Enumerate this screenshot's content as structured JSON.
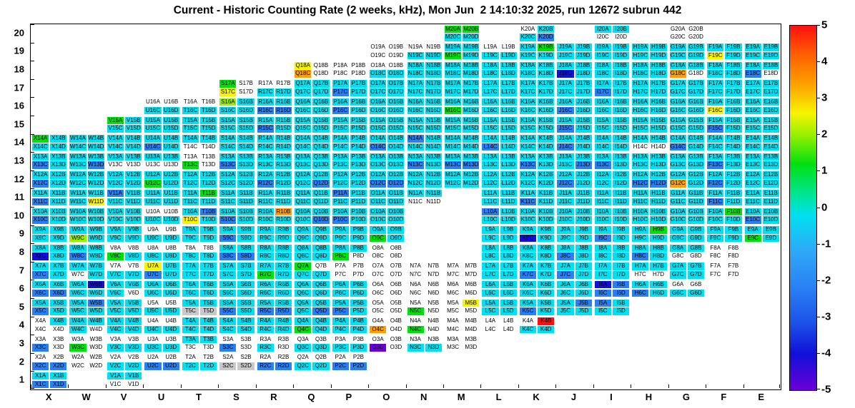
{
  "title": "Current - Historic Counting Rate (2 weeks, kHz), Mon Jun  2 14:10:32 2025, run 12672 subrun 442",
  "chart_data": {
    "type": "heatmap",
    "title": "Current - Historic Counting Rate (2 weeks, kHz), Mon Jun  2 14:10:32 2025, run 12672 subrun 442",
    "x_categories": [
      "X",
      "W",
      "V",
      "U",
      "T",
      "S",
      "R",
      "Q",
      "P",
      "O",
      "N",
      "M",
      "L",
      "K",
      "J",
      "I",
      "H",
      "G",
      "F",
      "E"
    ],
    "y_categories": [
      "20",
      "19",
      "18",
      "17",
      "16",
      "15",
      "14",
      "13",
      "12",
      "11",
      "10",
      "9",
      "8",
      "7",
      "6",
      "5",
      "4",
      "3",
      "2",
      "1"
    ],
    "sublabels": [
      "A",
      "B",
      "C",
      "D"
    ],
    "palette": {
      "w": "#FFFFFF",
      "c": "#00E0F0",
      "b": "#2980F5",
      "n": "#1010D8",
      "p": "#6A00D8",
      "g": "#00E010",
      "l": "#97F000",
      "y": "#F6F400",
      "o": "#FFA000",
      "r": "#FF1010",
      "s": "#C9C9C9"
    },
    "color_value_estimates": {
      "r": 5,
      "o": 4,
      "y": 3,
      "l": 2.5,
      "g": 1.5,
      "c": -0.5,
      "b": -2,
      "n": -3.5,
      "p": -4.5,
      "s": 0,
      "w": null
    },
    "colorbar": {
      "min": -5,
      "max": 5,
      "ticks": [
        "5",
        "4",
        "3",
        "2",
        "1",
        "0",
        "-1",
        "-2",
        "-3",
        "-4",
        "-5"
      ],
      "gradient_stops": [
        [
          "0%",
          "#FF1010"
        ],
        [
          "8%",
          "#FF6000"
        ],
        [
          "16%",
          "#FFA000"
        ],
        [
          "24%",
          "#F6F400"
        ],
        [
          "30%",
          "#97F000"
        ],
        [
          "38%",
          "#00E010"
        ],
        [
          "46%",
          "#00E590"
        ],
        [
          "52%",
          "#00E0F0"
        ],
        [
          "62%",
          "#2FA8F8"
        ],
        [
          "72%",
          "#2980F5"
        ],
        [
          "82%",
          "#1C4FE8"
        ],
        [
          "90%",
          "#1010D8"
        ],
        [
          "100%",
          "#6A00D8"
        ]
      ]
    },
    "rows": [
      {
        "row": 20,
        "cells": {
          "M": "ggcc",
          "K": "wccb",
          "I": "ccww",
          "G": "wwww"
        }
      },
      {
        "row": 19,
        "cells": {
          "O": "wwww",
          "N": "wwcc",
          "M": "ccgc",
          "L": "wwcc",
          "K": "cgcc",
          "J": "cccc",
          "I": "cccc",
          "H": "cccc",
          "G": "cccc",
          "F": "ccyc",
          "E": "cccc"
        }
      },
      {
        "row": 18,
        "cells": {
          "Q": "ywow",
          "P": "wwww",
          "O": "wwcc",
          "N": "cccc",
          "M": "cccc",
          "L": "cccc",
          "K": "cccc",
          "J": "ccnc",
          "I": "cccc",
          "H": "cccc",
          "G": "ccow",
          "F": "cccc",
          "E": "ccbw"
        }
      },
      {
        "row": 17,
        "cells": {
          "S": "gwyw",
          "R": "wwcc",
          "Q": "cccc",
          "P": "ccbc",
          "O": "cccc",
          "N": "cccc",
          "M": "cccc",
          "L": "cccc",
          "K": "cccc",
          "J": "cccc",
          "I": "ccbc",
          "H": "cccc",
          "G": "cccc",
          "F": "cccc",
          "E": "cccc"
        }
      },
      {
        "row": 16,
        "cells": {
          "U": "wwcc",
          "T": "wwcc",
          "S": "lccc",
          "R": "ccbb",
          "Q": "cccc",
          "P": "ccbc",
          "O": "cccc",
          "N": "cccc",
          "M": "ccgc",
          "L": "cccc",
          "K": "cccc",
          "J": "ccbc",
          "I": "cccc",
          "H": "cccc",
          "G": "cccc",
          "F": "ccyc",
          "E": "cccc"
        }
      },
      {
        "row": 15,
        "cells": {
          "V": "gccc",
          "U": "cccc",
          "T": "cccc",
          "S": "cccc",
          "R": "ccbc",
          "Q": "cccc",
          "P": "cccc",
          "O": "cccc",
          "N": "cccc",
          "M": "cccc",
          "L": "cccc",
          "K": "cccc",
          "J": "ccbc",
          "I": "cccc",
          "H": "cccc",
          "G": "cccc",
          "F": "ccbc",
          "E": "cccc"
        }
      },
      {
        "row": 14,
        "cells": {
          "X": "gccc",
          "W": "cccc",
          "V": "cccc",
          "U": "ccbc",
          "T": "ccww",
          "S": "cccc",
          "R": "cccc",
          "Q": "cccc",
          "P": "cccc",
          "O": "ccbc",
          "N": "bccc",
          "M": "cccc",
          "L": "ccbc",
          "K": "cccc",
          "J": "ccbc",
          "I": "cccc",
          "H": "ccww",
          "G": "ccbc",
          "F": "cccc",
          "E": "cccc"
        }
      },
      {
        "row": 13,
        "cells": {
          "X": "ccbc",
          "W": "cccb",
          "V": "ccww",
          "U": "ccww",
          "T": "wwgw",
          "S": "ccbc",
          "R": "cccc",
          "Q": "cccc",
          "P": "cccc",
          "O": "cccc",
          "N": "ccbc",
          "M": "ccbb",
          "L": "cccc",
          "K": "ccbc",
          "J": "cccb",
          "I": "ccbc",
          "H": "cccc",
          "G": "cccc",
          "F": "ccbc",
          "E": "cccc"
        }
      },
      {
        "row": 12,
        "cells": {
          "X": "ccbc",
          "W": "cccc",
          "V": "cccc",
          "U": "ccgc",
          "T": "cccc",
          "S": "cccc",
          "R": "ccbc",
          "Q": "cccb",
          "P": "cccc",
          "O": "ccbb",
          "N": "cccc",
          "M": "cccc",
          "L": "cccc",
          "K": "cccc",
          "J": "ccbc",
          "I": "cccc",
          "H": "ccbb",
          "G": "ccoc",
          "F": "ccbc",
          "E": "cccc"
        }
      },
      {
        "row": 11,
        "cells": {
          "X": "ccbc",
          "W": "cccy",
          "V": "bccc",
          "U": "cccc",
          "T": "cgcc",
          "S": "cccc",
          "R": "cccc",
          "Q": "cccc",
          "P": "bccc",
          "O": "cccc",
          "N": "ccww",
          "L": "cccc",
          "K": "ccbc",
          "J": "cccc",
          "I": "cccc",
          "H": "cccc",
          "G": "cccc",
          "F": "ccbc",
          "E": "cccc"
        }
      },
      {
        "row": 10,
        "cells": {
          "X": "ccbc",
          "W": "cccc",
          "V": "cccc",
          "U": "wwcc",
          "T": "cbyc",
          "S": "ccbc",
          "R": "cocc",
          "Q": "cccb",
          "P": "ccbc",
          "O": "cccc",
          "L": "bccc",
          "K": "cccc",
          "J": "cccc",
          "I": "cccc",
          "H": "cccc",
          "G": "cccc",
          "F": "cgcc",
          "E": "ccbc"
        }
      },
      {
        "row": 9,
        "cells": {
          "X": "cccc",
          "W": "cclc",
          "V": "cccc",
          "U": "wwcc",
          "T": "cccc",
          "S": "ccbc",
          "R": "cccc",
          "Q": "cccc",
          "P": "cccc",
          "O": "ccgc",
          "L": "cccc",
          "K": "ccnc",
          "J": "cccc",
          "I": "ccbc",
          "H": "cgcc",
          "G": "cccc",
          "F": "cccc",
          "E": "ccgc"
        }
      },
      {
        "row": 8,
        "cells": {
          "X": "ccnc",
          "W": "ccbc",
          "V": "wwgc",
          "U": "wwcc",
          "T": "wwcc",
          "S": "ccbb",
          "R": "cccc",
          "Q": "cccc",
          "P": "ccgw",
          "O": "wwww",
          "L": "cccc",
          "K": "cccc",
          "J": "ccbc",
          "I": "cccc",
          "H": "ccbc",
          "G": "ccww",
          "F": "wwww"
        }
      },
      {
        "row": 7,
        "cells": {
          "X": "ccbc",
          "W": "ccwc",
          "V": "wwcc",
          "U": "ycbc",
          "T": "cccc",
          "S": "cccc",
          "R": "ccgc",
          "Q": "gwcc",
          "P": "wwww",
          "O": "wwww",
          "N": "wwww",
          "M": "wwww",
          "L": "cccc",
          "K": "ccbc",
          "J": "ccbc",
          "I": "cccc",
          "H": "ccww",
          "G": "cccc",
          "F": "wwww"
        }
      },
      {
        "row": 6,
        "cells": {
          "X": "ccbb",
          "W": "cncc",
          "V": "cccw",
          "U": "cccc",
          "T": "cccc",
          "S": "cccc",
          "R": "cccc",
          "Q": "cccc",
          "P": "cccc",
          "O": "wwww",
          "N": "wwww",
          "M": "wwww",
          "L": "cccc",
          "K": "cccc",
          "J": "cccc",
          "I": "nbbb",
          "H": "ccbc",
          "G": "wwcc"
        }
      },
      {
        "row": 5,
        "cells": {
          "X": "ccbc",
          "W": "cbcc",
          "V": "cccc",
          "U": "wwcc",
          "T": "ccss",
          "S": "ccbc",
          "R": "ccbb",
          "Q": "cccb",
          "P": "ccbc",
          "O": "wwww",
          "N": "wwgw",
          "M": "wyww",
          "L": "cccc",
          "K": "ccbc",
          "J": "cbcc",
          "I": "bccc"
        }
      },
      {
        "row": 4,
        "cells": {
          "X": "wcww",
          "W": "cccw",
          "V": "cccc",
          "U": "wwcc",
          "T": "cccc",
          "S": "cccc",
          "R": "cccc",
          "Q": "ccgc",
          "P": "cccc",
          "O": "wwow",
          "N": "wwgw",
          "M": "wwww",
          "L": "wwww",
          "K": "wrcc"
        }
      },
      {
        "row": 3,
        "cells": {
          "X": "wwbw",
          "W": "wwgw",
          "V": "wwcc",
          "U": "wwcc",
          "T": "ccww",
          "S": "wwbw",
          "R": "wwcw",
          "Q": "wwcc",
          "P": "wwcc",
          "O": "wwpw",
          "N": "wwcc",
          "M": "wwww"
        }
      },
      {
        "row": 2,
        "cells": {
          "X": "wwbb",
          "W": "wwww",
          "V": "wwcc",
          "U": "wwbb",
          "T": "wwcc",
          "S": "wwss",
          "R": "wwbb",
          "Q": "wwcc",
          "P": "wwbb"
        }
      },
      {
        "row": 1,
        "cells": {
          "X": "ccbb",
          "V": "ccww"
        }
      }
    ]
  }
}
